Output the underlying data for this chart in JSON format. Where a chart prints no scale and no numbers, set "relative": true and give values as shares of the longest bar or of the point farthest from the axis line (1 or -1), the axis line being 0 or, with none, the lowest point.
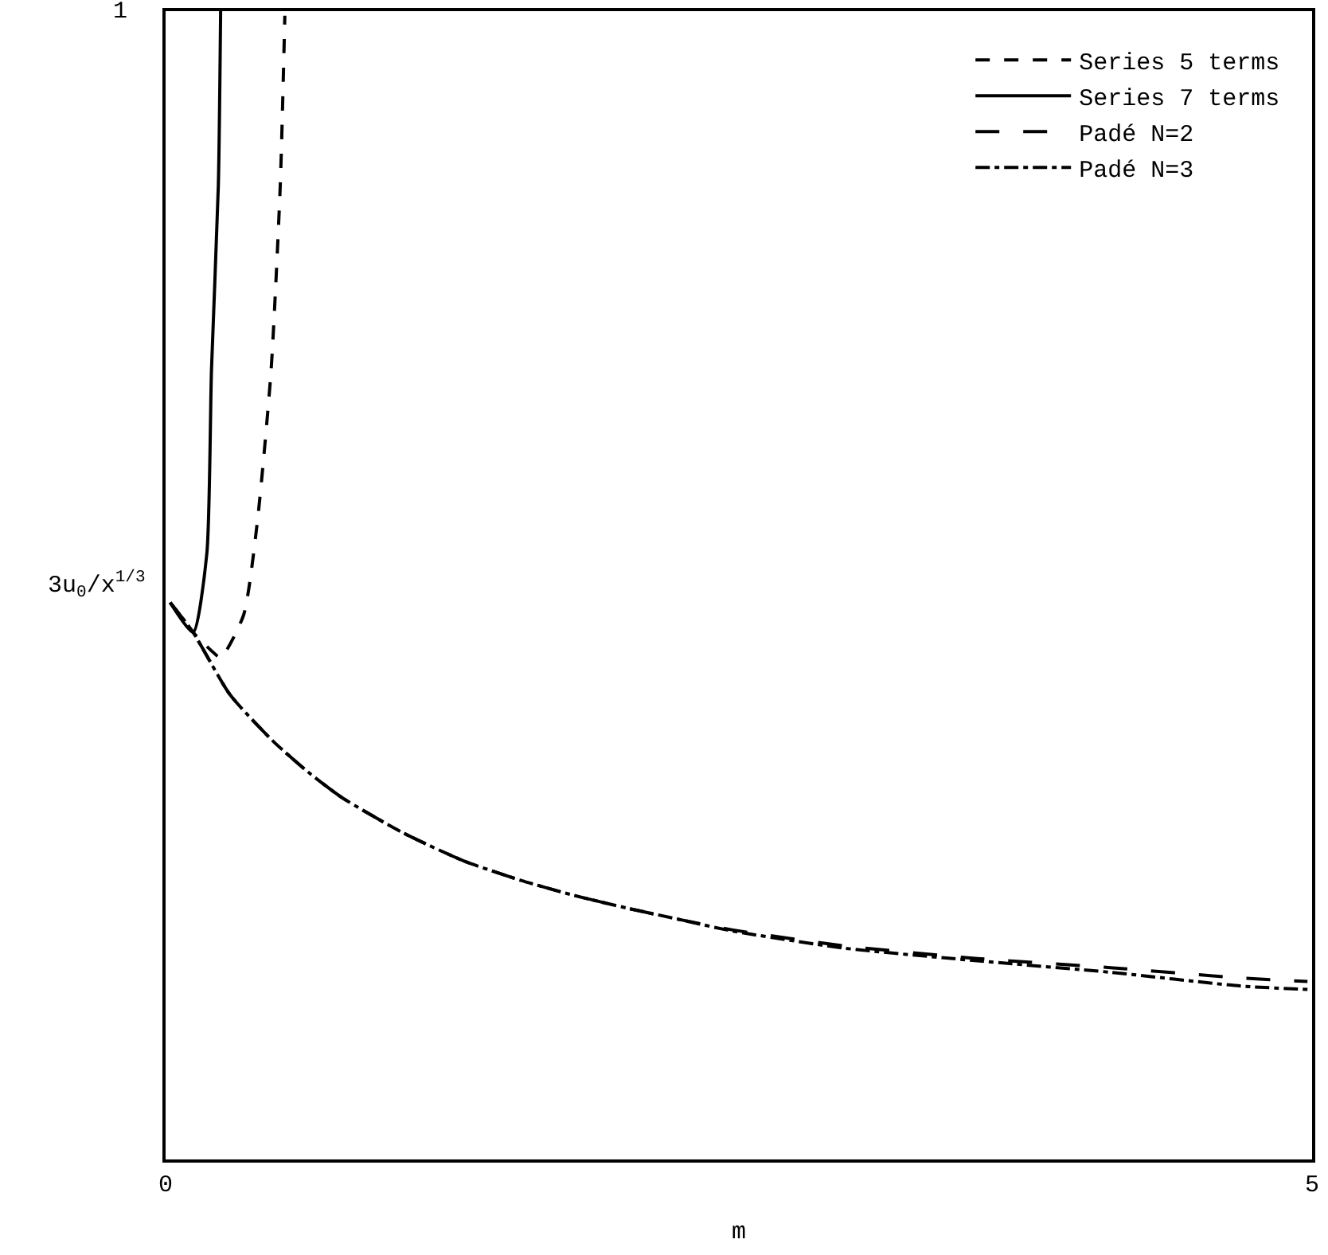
{
  "chart_data": {
    "type": "line",
    "xlabel": "m",
    "ylabel": "3u$_{0}$/x$^{1/3}$",
    "xlim": [
      0,
      5
    ],
    "xticks": [
      0,
      5
    ],
    "relative": true,
    "annotations": [
      "1"
    ],
    "legend": "top right",
    "marker": "none",
    "series": [
      {
        "name": "Series 5 terms",
        "color": "#000000",
        "line_style": "dotted",
        "x": [
          0.02,
          0.12,
          0.2,
          0.24,
          0.34,
          0.4,
          0.46,
          0.5,
          0.52
        ],
        "values": [
          0.485,
          0.459,
          0.443,
          0.437,
          0.474,
          0.555,
          0.687,
          0.848,
          0.996
        ]
      },
      {
        "name": "Series 7 terms",
        "color": "#000000",
        "line_style": "solid",
        "x": [
          0.02,
          0.12,
          0.18,
          0.2,
          0.23,
          0.24
        ],
        "values": [
          0.485,
          0.459,
          0.528,
          0.687,
          0.848,
          1
        ]
      },
      {
        "name": "Padé N=2",
        "color": "#000000",
        "line_style": "dashed",
        "x": [
          0.02,
          0.12,
          0.28,
          0.47,
          0.63,
          0.77,
          1.04,
          1.3,
          1.55,
          1.78,
          2.01,
          2.24,
          2.47,
          2.96,
          3.54,
          4.12,
          4.69,
          4.98
        ],
        "values": [
          0.485,
          0.459,
          0.405,
          0.364,
          0.336,
          0.315,
          0.284,
          0.26,
          0.243,
          0.23,
          0.219,
          0.209,
          0.2,
          0.186,
          0.175,
          0.167,
          0.158,
          0.155
        ]
      },
      {
        "name": "Padé N=3",
        "color": "#000000",
        "line_style": "dashdot",
        "x": [
          0.02,
          0.12,
          0.28,
          0.47,
          0.63,
          0.77,
          1.04,
          1.3,
          1.55,
          1.78,
          2.01,
          2.24,
          2.47,
          2.96,
          3.54,
          4.12,
          4.69,
          4.98
        ],
        "values": [
          0.485,
          0.459,
          0.405,
          0.364,
          0.336,
          0.315,
          0.284,
          0.26,
          0.243,
          0.23,
          0.219,
          0.209,
          0.199,
          0.184,
          0.173,
          0.163,
          0.151,
          0.148
        ]
      }
    ]
  }
}
